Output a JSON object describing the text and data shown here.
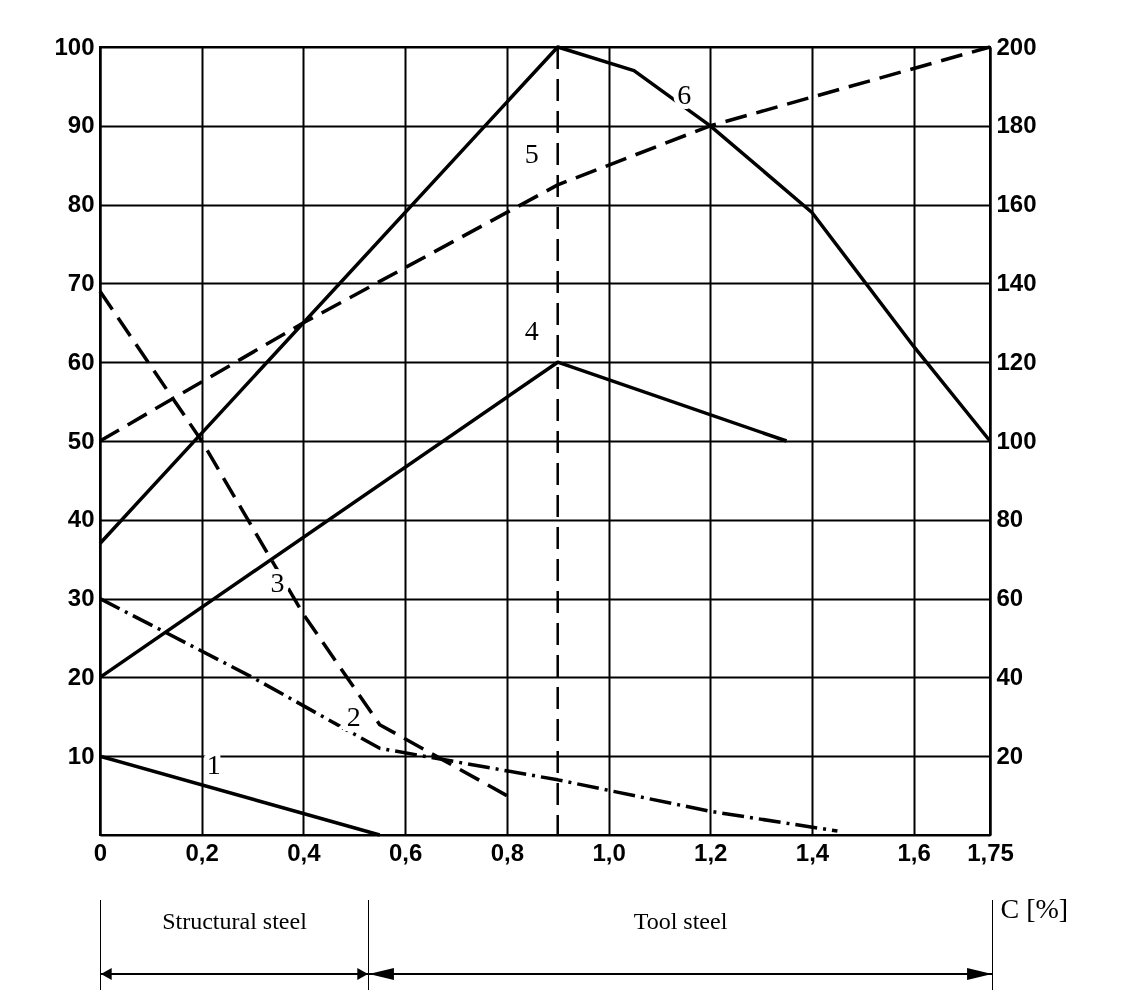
{
  "chart_data": {
    "type": "line",
    "xlabel": "C [%]",
    "xlim": [
      0,
      1.75
    ],
    "xticks": [
      0,
      {
        "value": 0.2,
        "label": "0,2"
      },
      {
        "value": 0.4,
        "label": "0,4"
      },
      {
        "value": 0.6,
        "label": "0,6"
      },
      {
        "value": 0.8,
        "label": "0,8"
      },
      {
        "value": 1.0,
        "label": "1,0"
      },
      {
        "value": 1.2,
        "label": "1,2"
      },
      {
        "value": 1.4,
        "label": "1,4"
      },
      {
        "value": 1.6,
        "label": "1,6"
      },
      {
        "value": 1.75,
        "label": "1,75"
      }
    ],
    "ylim": [
      0,
      100
    ],
    "yticks": [
      10,
      20,
      30,
      40,
      50,
      60,
      70,
      80,
      90,
      100
    ],
    "y2lim": [
      0,
      200
    ],
    "y2ticks": [
      20,
      40,
      60,
      80,
      100,
      120,
      140,
      160,
      180,
      200
    ],
    "grid": true,
    "marker": "none",
    "series": [
      {
        "name": "1",
        "color": "#000000",
        "line_style": "solid",
        "x": [
          0,
          0.55
        ],
        "values": [
          10,
          0
        ]
      },
      {
        "name": "2",
        "color": "#000000",
        "line_style": "dotted",
        "x": [
          0,
          0.3,
          0.55,
          0.9,
          1.2,
          1.45
        ],
        "values": [
          30,
          20,
          11,
          7,
          3,
          0.5
        ]
      },
      {
        "name": "3",
        "color": "#000000",
        "line_style": "dashed",
        "x": [
          0,
          0.2,
          0.4,
          0.55,
          0.8
        ],
        "values": [
          69,
          50,
          28,
          14,
          5
        ]
      },
      {
        "name": "4",
        "color": "#000000",
        "line_style": "solid",
        "x": [
          0,
          0.9,
          1.35
        ],
        "values": [
          20,
          60,
          50
        ]
      },
      {
        "name": "5",
        "color": "#000000",
        "line_style": "dashed",
        "axis": "y2",
        "x": [
          0,
          0.4,
          0.9,
          1.2,
          1.75
        ],
        "values": [
          100,
          130,
          165,
          180,
          200
        ]
      },
      {
        "name": "6",
        "color": "#000000",
        "line_style": "solid",
        "x": [
          0,
          0.9,
          1.05,
          1.2,
          1.4,
          1.6,
          1.75
        ],
        "values": [
          37,
          100,
          97,
          90,
          79,
          62,
          50
        ]
      }
    ],
    "ref_lines": [
      {
        "axis": "x",
        "value": 0.9,
        "line_style": "dashed"
      }
    ],
    "annotations": [
      "Structural steel",
      "Tool steel"
    ]
  }
}
